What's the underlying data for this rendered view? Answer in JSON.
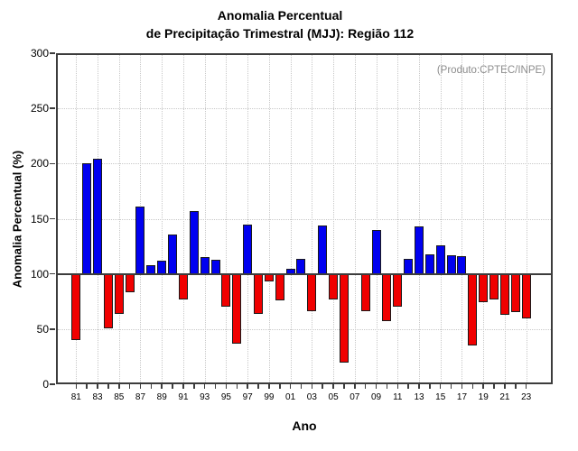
{
  "title_line1": "Anomalia Percentual",
  "title_line2": "de Precipitação Trimestral (MJJ): Região 112",
  "annotation": "(Produto:CPTEC/INPE)",
  "chart_data": {
    "type": "bar",
    "title": "Anomalia Percentual de Precipitação Trimestral (MJJ): Região 112",
    "xlabel": "Ano",
    "ylabel": "Anomalia Percentual (%)",
    "ylim": [
      0,
      300
    ],
    "yticks": [
      0,
      50,
      100,
      150,
      200,
      250,
      300
    ],
    "baseline": 100,
    "grid": "dotted; horizontal every 50, vertical every 2 years",
    "legend_position": "none",
    "categories": [
      "81",
      "82",
      "83",
      "84",
      "85",
      "86",
      "87",
      "88",
      "89",
      "90",
      "91",
      "92",
      "93",
      "94",
      "95",
      "96",
      "97",
      "98",
      "99",
      "00",
      "01",
      "02",
      "03",
      "04",
      "05",
      "06",
      "07",
      "08",
      "09",
      "10",
      "11",
      "12",
      "13",
      "14",
      "15",
      "16",
      "17",
      "18",
      "19",
      "20",
      "21",
      "22",
      "23"
    ],
    "values": [
      40,
      200,
      204,
      51,
      64,
      83,
      161,
      108,
      112,
      136,
      77,
      157,
      115,
      113,
      70,
      37,
      145,
      64,
      93,
      76,
      105,
      114,
      66,
      144,
      77,
      20,
      100,
      66,
      140,
      57,
      70,
      114,
      143,
      118,
      126,
      117,
      116,
      35,
      74,
      77,
      63,
      65,
      60
    ],
    "x_tick_labels": [
      "81",
      "83",
      "85",
      "87",
      "89",
      "91",
      "93",
      "95",
      "97",
      "99",
      "01",
      "03",
      "05",
      "07",
      "09",
      "11",
      "13",
      "15",
      "17",
      "19",
      "21",
      "23"
    ],
    "colors": {
      "above_baseline": "#0000f0",
      "below_baseline": "#f00000",
      "baseline": "#3c3c3c",
      "grid": "#c8c8c8",
      "annotation": "#8c8c8c"
    }
  }
}
